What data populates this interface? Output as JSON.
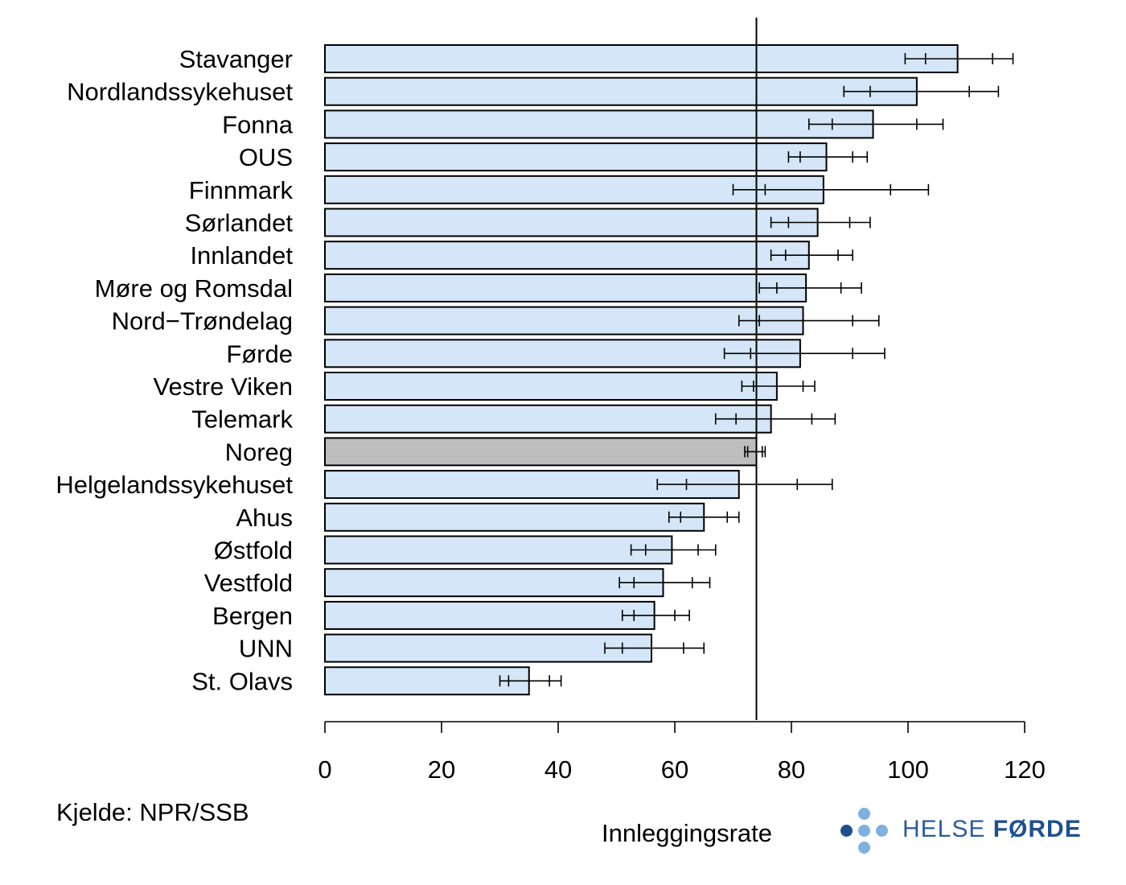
{
  "chart_data": {
    "type": "bar",
    "orientation": "horizontal",
    "categories": [
      "Stavanger",
      "Nordlandssykehuset",
      "Fonna",
      "OUS",
      "Finnmark",
      "Sørlandet",
      "Innlandet",
      "Møre og Romsdal",
      "Nord−Trøndelag",
      "Førde",
      "Vestre Viken",
      "Telemark",
      "Noreg",
      "Helgelandssykehuset",
      "Ahus",
      "Østfold",
      "Vestfold",
      "Bergen",
      "UNN",
      "St. Olavs"
    ],
    "values": [
      108.5,
      101.5,
      94,
      86,
      85.5,
      84.5,
      83,
      82.5,
      82,
      81.5,
      77.5,
      76.5,
      74,
      71,
      65,
      59.5,
      58,
      56.5,
      56,
      35
    ],
    "ci_outer_low": [
      99.5,
      89,
      83,
      79.5,
      70,
      76.5,
      76.5,
      74.5,
      71,
      68.5,
      71.5,
      67,
      72,
      57,
      59,
      52.5,
      50.5,
      51,
      48,
      30
    ],
    "ci_inner_low": [
      103,
      93.5,
      87,
      81.5,
      75.5,
      79.5,
      79,
      77.5,
      74.5,
      73,
      73.5,
      70.5,
      72.5,
      62,
      61,
      55,
      53,
      53,
      51,
      31.5
    ],
    "ci_inner_high": [
      114.5,
      110.5,
      101.5,
      90.5,
      97,
      90,
      88,
      88.5,
      90.5,
      90.5,
      82,
      83.5,
      75,
      81,
      69,
      64,
      63,
      60,
      61.5,
      38.5
    ],
    "ci_outer_high": [
      118,
      115.5,
      106,
      93,
      103.5,
      93.5,
      90.5,
      92,
      95,
      96,
      84,
      87.5,
      75.5,
      87,
      71,
      67,
      66,
      62.5,
      65,
      40.5
    ],
    "highlight_category": "Noreg",
    "reference_line": 74,
    "xlim": [
      0,
      120
    ],
    "x_ticks": [
      0,
      20,
      40,
      60,
      80,
      100,
      120
    ],
    "xlabel": "Innleggingsrate",
    "ylabel": "",
    "title": "",
    "grid": false,
    "colors": {
      "bar": "#d4e6f7",
      "highlight_bar": "#bebebe",
      "stroke": "#000000"
    }
  },
  "source_note": "Kjelde: NPR/SSB",
  "logo": {
    "word1": "HELSE",
    "word2": "FØRDE",
    "colors": {
      "dark": "#1f4f8f",
      "light": "#7fb1de"
    }
  }
}
